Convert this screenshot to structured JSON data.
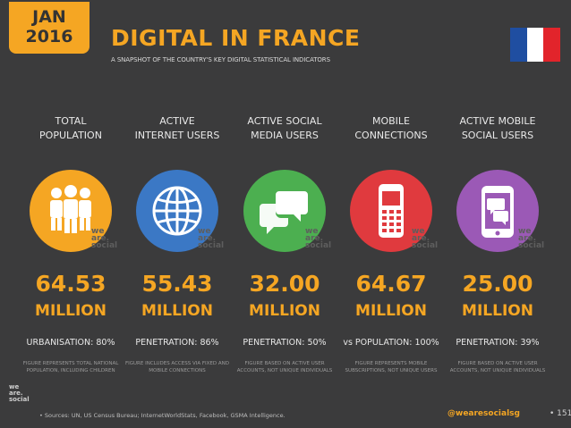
{
  "header": {
    "month": "JAN",
    "year": "2016",
    "title": "DIGITAL IN FRANCE",
    "subtitle": "A SNAPSHOT OF THE COUNTRY'S KEY DIGITAL STATISTICAL INDICATORS"
  },
  "flag": {
    "colors": [
      "#1f4ea1",
      "#ffffff",
      "#e2242b"
    ]
  },
  "columns": [
    {
      "label_line1": "TOTAL",
      "label_line2": "POPULATION",
      "icon": "people-icon",
      "color": "#f5a623",
      "value": "64.53",
      "unit": "MILLION",
      "metric": "URBANISATION: 80%",
      "note": "FIGURE REPRESENTS TOTAL NATIONAL POPULATION, INCLUDING CHILDREN"
    },
    {
      "label_line1": "ACTIVE",
      "label_line2": "INTERNET USERS",
      "icon": "globe-icon",
      "color": "#3b78c5",
      "value": "55.43",
      "unit": "MILLION",
      "metric": "PENETRATION: 86%",
      "note": "FIGURE INCLUDES ACCESS VIA FIXED AND MOBILE CONNECTIONS"
    },
    {
      "label_line1": "ACTIVE SOCIAL",
      "label_line2": "MEDIA USERS",
      "icon": "chat-bubbles-icon",
      "color": "#4caf50",
      "value": "32.00",
      "unit": "MILLION",
      "metric": "PENETRATION: 50%",
      "note": "FIGURE BASED ON ACTIVE USER ACCOUNTS, NOT UNIQUE INDIVIDUALS"
    },
    {
      "label_line1": "MOBILE",
      "label_line2": "CONNECTIONS",
      "icon": "mobile-phone-icon",
      "color": "#e03a3e",
      "value": "64.67",
      "unit": "MILLION",
      "metric": "vs POPULATION: 100%",
      "note": "FIGURE REPRESENTS MOBILE SUBSCRIPTIONS, NOT UNIQUE USERS"
    },
    {
      "label_line1": "ACTIVE MOBILE",
      "label_line2": "SOCIAL USERS",
      "icon": "smartphone-chat-icon",
      "color": "#9b59b6",
      "value": "25.00",
      "unit": "MILLION",
      "metric": "PENETRATION: 39%",
      "note": "FIGURE BASED ON ACTIVE USER ACCOUNTS, NOT UNIQUE INDIVIDUALS"
    }
  ],
  "watermark": {
    "line1": "we",
    "line2": "are.",
    "line3": "social"
  },
  "footer": {
    "logo_line1": "we",
    "logo_line2": "are.",
    "logo_line3": "social",
    "sources": "• Sources: UN, US Census Bureau; InternetWorldStats, Facebook, GSMA Intelligence.",
    "handle": "@wearesocialsg",
    "page": "• 151"
  }
}
